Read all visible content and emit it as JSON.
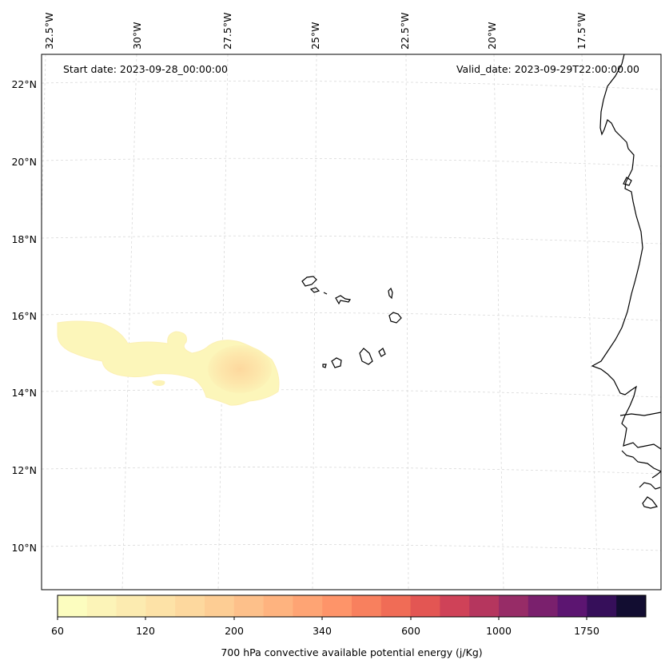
{
  "map": {
    "start_date": "Start date: 2023-09-28_00:00:00",
    "valid_date": "Valid_date: 2023-09-29T22:00:00.00",
    "lon_labels": [
      "32.5°W",
      "30°W",
      "27.5°W",
      "25°W",
      "22.5°W",
      "20°W",
      "17.5°W"
    ],
    "lat_labels": [
      "22°N",
      "20°N",
      "18°N",
      "16°N",
      "14°N",
      "12°N",
      "10°N"
    ],
    "features": [
      {
        "name": "cabo-verde-islands"
      },
      {
        "name": "west-african-coastline"
      },
      {
        "name": "cape-field"
      }
    ]
  },
  "colorbar": {
    "label": "700 hPa convective available potential energy (j/Kg)",
    "tick_labels": [
      "60",
      "120",
      "200",
      "340",
      "600",
      "1000",
      "1750"
    ],
    "colors": [
      "#fcfdbf",
      "#fcf4b8",
      "#fcebb0",
      "#fde2a7",
      "#fdd89e",
      "#fdcd94",
      "#fdc08a",
      "#feb37f",
      "#fea474",
      "#fe9469",
      "#f8805e",
      "#f06c56",
      "#e35653",
      "#cf4258",
      "#b5365e",
      "#972c67",
      "#7a206d",
      "#5c1571",
      "#360f5a",
      "#120d31"
    ]
  }
}
